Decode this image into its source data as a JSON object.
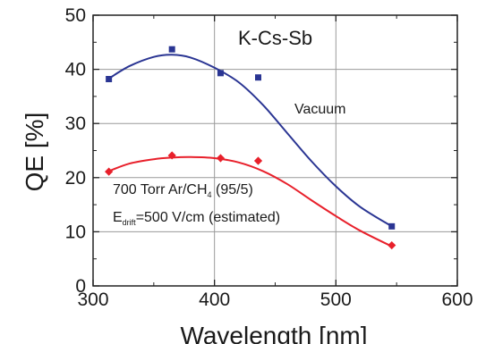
{
  "chart_data": {
    "type": "scatter",
    "title": "K-Cs-Sb",
    "xlabel": "Wavelength [nm]",
    "ylabel": "QE [%]",
    "xlim": [
      300,
      600
    ],
    "ylim": [
      0,
      50
    ],
    "xticks": [
      300,
      400,
      500,
      600
    ],
    "yticks": [
      0,
      10,
      20,
      30,
      40,
      50
    ],
    "grid": true,
    "series": [
      {
        "name": "Vacuum",
        "marker": "square",
        "color": "#2a3593",
        "x": [
          313,
          365,
          405,
          436,
          546
        ],
        "y": [
          38.2,
          43.7,
          39.3,
          38.5,
          11.0
        ],
        "fit_x": [
          313,
          330,
          350,
          365,
          380,
          400,
          420,
          440,
          460,
          480,
          500,
          520,
          546
        ],
        "fit_y": [
          38.3,
          40.6,
          42.3,
          42.7,
          42.2,
          40.3,
          37.6,
          33.4,
          28.2,
          23.0,
          18.4,
          14.6,
          11.0
        ]
      },
      {
        "name": "700 Torr Ar/CH",
        "marker": "diamond",
        "color": "#e8202b",
        "x": [
          313,
          365,
          405,
          436,
          546
        ],
        "y": [
          21.1,
          24.1,
          23.6,
          23.1,
          7.5
        ],
        "fit_x": [
          313,
          330,
          350,
          365,
          380,
          400,
          420,
          440,
          460,
          480,
          500,
          520,
          546
        ],
        "fit_y": [
          21.2,
          22.6,
          23.4,
          23.7,
          23.8,
          23.6,
          22.8,
          21.2,
          18.8,
          15.8,
          12.9,
          10.2,
          7.3
        ]
      }
    ],
    "annotations": {
      "vacuum_label": "Vacuum",
      "gas_line1_pre": "700 Torr Ar/CH",
      "gas_line1_sub": "4",
      "gas_line1_post": " (95/5)",
      "gas_line2_pre": "E",
      "gas_line2_sub": "drift",
      "gas_line2_post": "=500 V/cm (estimated)"
    }
  }
}
